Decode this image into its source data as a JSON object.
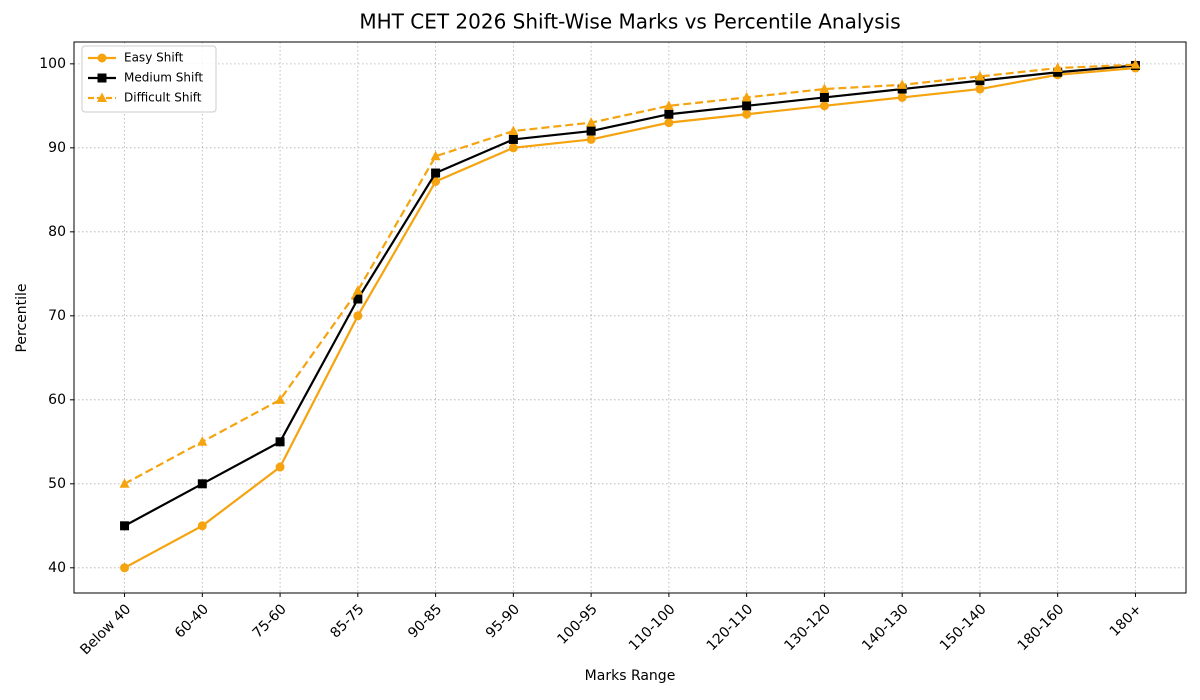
{
  "chart_data": {
    "type": "line",
    "title": "MHT CET 2026 Shift-Wise Marks vs Percentile Analysis",
    "x_label": "Marks Range",
    "y_label": "Percentile",
    "categories": [
      "Below 40",
      "60-40",
      "75-60",
      "85-75",
      "90-85",
      "95-90",
      "100-95",
      "110-100",
      "120-110",
      "130-120",
      "140-130",
      "150-140",
      "180-160",
      "180+"
    ],
    "series": [
      {
        "name": "Easy Shift",
        "color": "#f5a30f",
        "marker": "circle",
        "linestyle": "solid",
        "values": [
          40,
          45,
          52,
          70,
          86,
          90,
          91,
          93,
          94,
          95,
          96,
          97,
          98.7,
          99.5
        ]
      },
      {
        "name": "Medium Shift",
        "color": "#000000",
        "marker": "square",
        "linestyle": "solid",
        "values": [
          45,
          50,
          55,
          72,
          87,
          91,
          92,
          94,
          95,
          96,
          97,
          98,
          99,
          99.8
        ]
      },
      {
        "name": "Difficult Shift",
        "color": "#f5a30f",
        "marker": "triangle",
        "linestyle": "dashed",
        "values": [
          50,
          55,
          60,
          73,
          89,
          92,
          93,
          95,
          96,
          97,
          97.5,
          98.5,
          99.5,
          99.9
        ]
      }
    ],
    "ylim": [
      37,
      102.6
    ],
    "yticks": [
      40,
      50,
      60,
      70,
      80,
      90,
      100
    ],
    "grid": true,
    "legend": "upper left"
  }
}
